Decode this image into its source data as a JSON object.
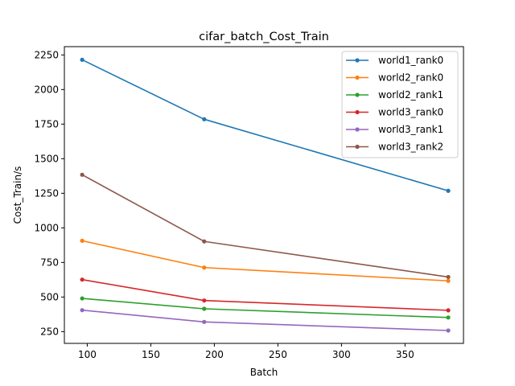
{
  "chart_data": {
    "type": "line",
    "title": "cifar_batch_Cost_Train",
    "xlabel": "Batch",
    "ylabel": "Cost_Train/s",
    "xlim": [
      82,
      396
    ],
    "ylim": [
      165,
      2310
    ],
    "xticks": [
      100,
      150,
      200,
      250,
      300,
      350
    ],
    "yticks": [
      250,
      500,
      750,
      1000,
      1250,
      1500,
      1750,
      2000,
      2250
    ],
    "grid": false,
    "legend_position": "upper right",
    "x": [
      96,
      192,
      384
    ],
    "series": [
      {
        "name": "world1_rank0",
        "color": "#1f77b4",
        "values": [
          2215,
          1785,
          1268
        ]
      },
      {
        "name": "world2_rank0",
        "color": "#ff7f0e",
        "values": [
          907,
          713,
          617
        ]
      },
      {
        "name": "world2_rank1",
        "color": "#2ca02c",
        "values": [
          490,
          415,
          352
        ]
      },
      {
        "name": "world3_rank0",
        "color": "#d62728",
        "values": [
          626,
          475,
          404
        ]
      },
      {
        "name": "world3_rank1",
        "color": "#9467bd",
        "values": [
          405,
          320,
          258
        ]
      },
      {
        "name": "world3_rank2",
        "color": "#8c564b",
        "values": [
          1384,
          902,
          645
        ]
      }
    ]
  }
}
